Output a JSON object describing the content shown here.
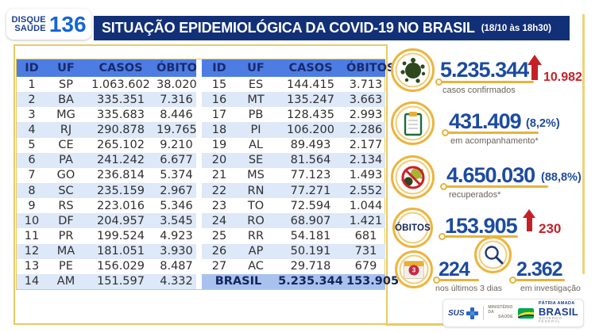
{
  "header": {
    "logo_line1": "DISQUE",
    "logo_line2": "SAÚDE",
    "logo_number": "136",
    "title": "SITUAÇÃO EPIDEMIOLÓGICA DA COVID-19 NO BRASIL",
    "timestamp": "(18/10 às 18h30)"
  },
  "table": {
    "columns": [
      "ID",
      "UF",
      "CASOS",
      "ÓBITOS"
    ],
    "left_rows": [
      [
        "1",
        "SP",
        "1.063.602",
        "38.020"
      ],
      [
        "2",
        "BA",
        "335.351",
        "7.316"
      ],
      [
        "3",
        "MG",
        "335.683",
        "8.446"
      ],
      [
        "4",
        "RJ",
        "290.878",
        "19.765"
      ],
      [
        "5",
        "CE",
        "265.102",
        "9.210"
      ],
      [
        "6",
        "PA",
        "241.242",
        "6.677"
      ],
      [
        "7",
        "GO",
        "236.814",
        "5.374"
      ],
      [
        "8",
        "SC",
        "235.159",
        "2.967"
      ],
      [
        "9",
        "RS",
        "223.016",
        "5.346"
      ],
      [
        "10",
        "DF",
        "204.957",
        "3.545"
      ],
      [
        "11",
        "PR",
        "199.524",
        "4.923"
      ],
      [
        "12",
        "MA",
        "181.051",
        "3.930"
      ],
      [
        "13",
        "PE",
        "156.029",
        "8.487"
      ],
      [
        "14",
        "AM",
        "151.597",
        "4.332"
      ]
    ],
    "right_rows": [
      [
        "15",
        "ES",
        "144.415",
        "3.713"
      ],
      [
        "16",
        "MT",
        "135.247",
        "3.663"
      ],
      [
        "17",
        "PB",
        "128.435",
        "2.993"
      ],
      [
        "18",
        "PI",
        "106.200",
        "2.286"
      ],
      [
        "19",
        "AL",
        "89.493",
        "2.177"
      ],
      [
        "20",
        "SE",
        "81.564",
        "2.134"
      ],
      [
        "21",
        "MS",
        "77.123",
        "1.493"
      ],
      [
        "22",
        "RN",
        "77.271",
        "2.552"
      ],
      [
        "23",
        "TO",
        "72.594",
        "1.044"
      ],
      [
        "24",
        "RO",
        "68.907",
        "1.421"
      ],
      [
        "25",
        "RR",
        "54.181",
        "681"
      ],
      [
        "26",
        "AP",
        "50.191",
        "731"
      ],
      [
        "27",
        "AC",
        "29.718",
        "679"
      ]
    ],
    "total_label": "BRASIL",
    "total_casos": "5.235.344",
    "total_obitos": "153.905"
  },
  "stats": {
    "confirmed": {
      "value": "5.235.344",
      "delta": "10.982",
      "label": "casos confirmados"
    },
    "monitoring": {
      "value": "431.409",
      "pct": "(8,2%)",
      "label": "em acompanhamento*"
    },
    "recovered": {
      "value": "4.650.030",
      "pct": "(88,8%)",
      "label": "recuperados*"
    },
    "deaths": {
      "badge": "ÓBITOS",
      "value": "153.905",
      "delta": "230"
    },
    "last3days": {
      "value": "224",
      "label": "nos últimos 3 dias",
      "calendar_badge": "3"
    },
    "investigation": {
      "value": "2.362",
      "label": "em investigação"
    }
  },
  "footer": {
    "sus": "SUS",
    "ministry_line1": "MINISTÉRIO DA",
    "ministry_line2": "SAÚDE",
    "brand_top": "PÁTRIA AMADA",
    "brand": "BRASIL",
    "brand_sub": "GOVERNO FEDERAL"
  },
  "colors": {
    "title_navy": "#123077",
    "table_header_blue": "#4d7de2",
    "row_alt_blue": "#dde8f8",
    "total_row_blue": "#a8c2ee",
    "accent_yellow": "#e7b33c",
    "number_navy": "#1c4ba0",
    "alert_red": "#c42127",
    "virus_green": "#2c481c"
  },
  "chart_data": {
    "type": "table",
    "title": "SITUAÇÃO EPIDEMIOLÓGICA DA COVID-19 NO BRASIL (18/10 às 18h30)",
    "columns": [
      "ID",
      "UF",
      "CASOS",
      "ÓBITOS"
    ],
    "rows": [
      [
        1,
        "SP",
        1063602,
        38020
      ],
      [
        2,
        "BA",
        335351,
        7316
      ],
      [
        3,
        "MG",
        335683,
        8446
      ],
      [
        4,
        "RJ",
        290878,
        19765
      ],
      [
        5,
        "CE",
        265102,
        9210
      ],
      [
        6,
        "PA",
        241242,
        6677
      ],
      [
        7,
        "GO",
        236814,
        5374
      ],
      [
        8,
        "SC",
        235159,
        2967
      ],
      [
        9,
        "RS",
        223016,
        5346
      ],
      [
        10,
        "DF",
        204957,
        3545
      ],
      [
        11,
        "PR",
        199524,
        4923
      ],
      [
        12,
        "MA",
        181051,
        3930
      ],
      [
        13,
        "PE",
        156029,
        8487
      ],
      [
        14,
        "AM",
        151597,
        4332
      ],
      [
        15,
        "ES",
        144415,
        3713
      ],
      [
        16,
        "MT",
        135247,
        3663
      ],
      [
        17,
        "PB",
        128435,
        2993
      ],
      [
        18,
        "PI",
        106200,
        2286
      ],
      [
        19,
        "AL",
        89493,
        2177
      ],
      [
        20,
        "SE",
        81564,
        2134
      ],
      [
        21,
        "MS",
        77123,
        1493
      ],
      [
        22,
        "RN",
        77271,
        2552
      ],
      [
        23,
        "TO",
        72594,
        1044
      ],
      [
        24,
        "RO",
        68907,
        1421
      ],
      [
        25,
        "RR",
        54181,
        681
      ],
      [
        26,
        "AP",
        50191,
        731
      ],
      [
        27,
        "AC",
        29718,
        679
      ]
    ],
    "total": {
      "uf": "BRASIL",
      "casos": 5235344,
      "obitos": 153905
    },
    "summary": {
      "casos_confirmados": 5235344,
      "novos_casos": 10982,
      "em_acompanhamento": 431409,
      "em_acompanhamento_pct": "8,2%",
      "recuperados": 4650030,
      "recuperados_pct": "88,8%",
      "obitos": 153905,
      "novos_obitos": 230,
      "obitos_ultimos_3_dias": 224,
      "obitos_em_investigacao": 2362
    }
  }
}
